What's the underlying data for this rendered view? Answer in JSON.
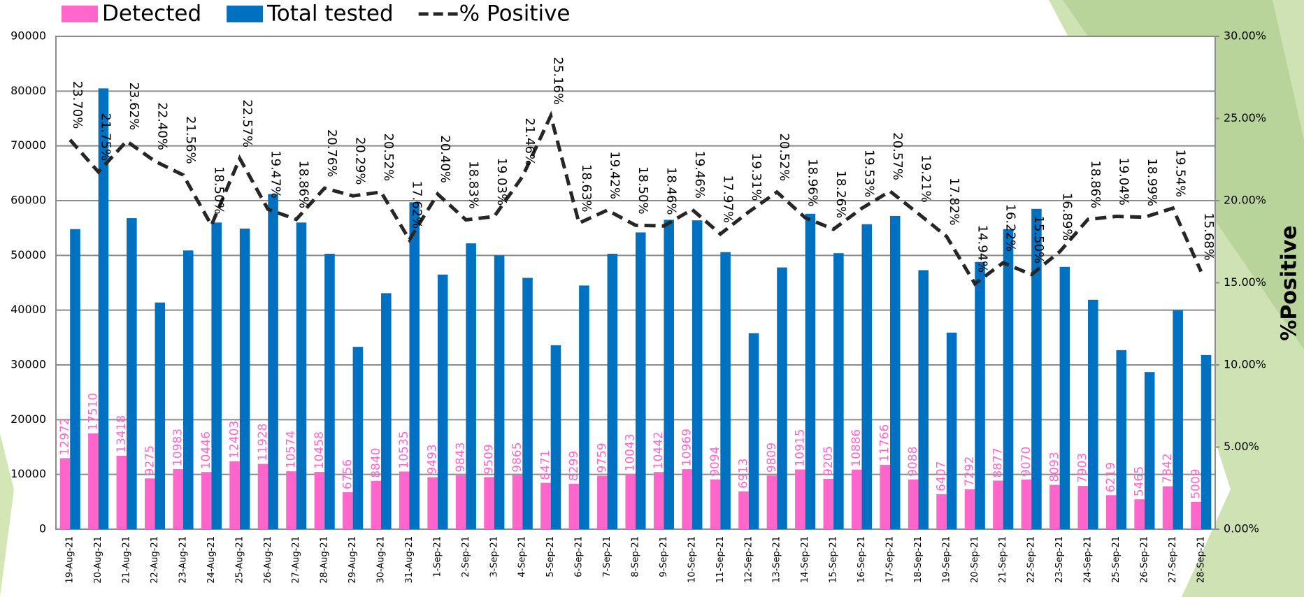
{
  "chart_data": {
    "type": "bar",
    "categories": [
      "19-Aug-21",
      "20-Aug-21",
      "21-Aug-21",
      "22-Aug-21",
      "23-Aug-21",
      "24-Aug-21",
      "25-Aug-21",
      "26-Aug-21",
      "27-Aug-21",
      "28-Aug-21",
      "29-Aug-21",
      "30-Aug-21",
      "31-Aug-21",
      "1-Sep-21",
      "2-Sep-21",
      "3-Sep-21",
      "4-Sep-21",
      "5-Sep-21",
      "6-Sep-21",
      "7-Sep-21",
      "8-Sep-21",
      "9-Sep-21",
      "10-Sep-21",
      "11-Sep-21",
      "12-Sep-21",
      "13-Sep-21",
      "14-Sep-21",
      "15-Sep-21",
      "16-Sep-21",
      "17-Sep-21",
      "18-Sep-21",
      "19-Sep-21",
      "20-Sep-21",
      "21-Sep-21",
      "22-Sep-21",
      "23-Sep-21",
      "24-Sep-21",
      "25-Sep-21",
      "26-Sep-21",
      "27-Sep-21",
      "28-Sep-21"
    ],
    "series": [
      {
        "name": "Detected",
        "color": "#ff66cc",
        "type": "bar",
        "values": [
          12972,
          17510,
          13418,
          9275,
          10983,
          10446,
          12403,
          11928,
          10574,
          10458,
          6756,
          8840,
          10535,
          9493,
          9843,
          9509,
          9865,
          8471,
          8299,
          9759,
          10043,
          10442,
          10969,
          9094,
          6913,
          9809,
          10915,
          9205,
          10886,
          11766,
          9088,
          6407,
          7292,
          8877,
          9070,
          8093,
          7903,
          6219,
          5465,
          7842,
          5009
        ]
      },
      {
        "name": "Total tested",
        "color": "#0070c0",
        "type": "bar",
        "values": [
          54800,
          80500,
          56800,
          41400,
          50900,
          56000,
          54900,
          61200,
          56000,
          50300,
          33300,
          43100,
          59700,
          46500,
          52200,
          50000,
          45900,
          33600,
          44500,
          50300,
          54200,
          56500,
          56400,
          50600,
          35800,
          47800,
          57600,
          50400,
          55700,
          57200,
          47300,
          35900,
          48800,
          54800,
          58500,
          47900,
          41900,
          32700,
          28700,
          40000,
          31800
        ]
      },
      {
        "name": "% Positive",
        "color": "#262626",
        "type": "line",
        "axis": "y2",
        "values": [
          23.7,
          21.75,
          23.62,
          22.4,
          21.56,
          18.5,
          22.57,
          19.47,
          18.86,
          20.76,
          20.29,
          20.52,
          17.62,
          20.4,
          18.83,
          19.03,
          21.46,
          25.16,
          18.63,
          19.42,
          18.5,
          18.46,
          19.46,
          17.97,
          19.31,
          20.52,
          18.96,
          18.26,
          19.53,
          20.57,
          19.21,
          17.82,
          14.94,
          16.22,
          15.5,
          16.89,
          18.86,
          19.04,
          18.99,
          19.54,
          15.68
        ],
        "value_labels": [
          "23.70%",
          "21.75%",
          "23.62%",
          "22.40%",
          "21.56%",
          "18.50%",
          "22.57%",
          "19.47%",
          "18.86%",
          "20.76%",
          "20.29%",
          "20.52%",
          "17.62%",
          "20.40%",
          "18.83%",
          "19.03%",
          "21.46%",
          "25.16%",
          "18.63%",
          "19.42%",
          "18.50%",
          "18.46%",
          "19.46%",
          "17.97%",
          "19.31%",
          "20.52%",
          "18.96%",
          "18.26%",
          "19.53%",
          "20.57%",
          "19.21%",
          "17.82%",
          "14.94%",
          "16.22%",
          "15.50%",
          "16.89%",
          "18.86%",
          "19.04%",
          "18.99%",
          "19.54%",
          "15.68%"
        ]
      }
    ],
    "ylim": [
      0,
      90000
    ],
    "yticks": [
      0,
      10000,
      20000,
      30000,
      40000,
      50000,
      60000,
      70000,
      80000,
      90000
    ],
    "y2lim": [
      0,
      30
    ],
    "y2ticks": [
      {
        "value": 0,
        "label": "0.00%"
      },
      {
        "value": 5,
        "label": "5.00%"
      },
      {
        "value": 10,
        "label": "10.00%"
      },
      {
        "value": 15,
        "label": "15.00%"
      },
      {
        "value": 20,
        "label": "20.00%"
      },
      {
        "value": 25,
        "label": "25.00%"
      },
      {
        "value": 30,
        "label": "30.00%"
      }
    ],
    "y2label": "%Positive",
    "grid": true,
    "legend": "top"
  }
}
